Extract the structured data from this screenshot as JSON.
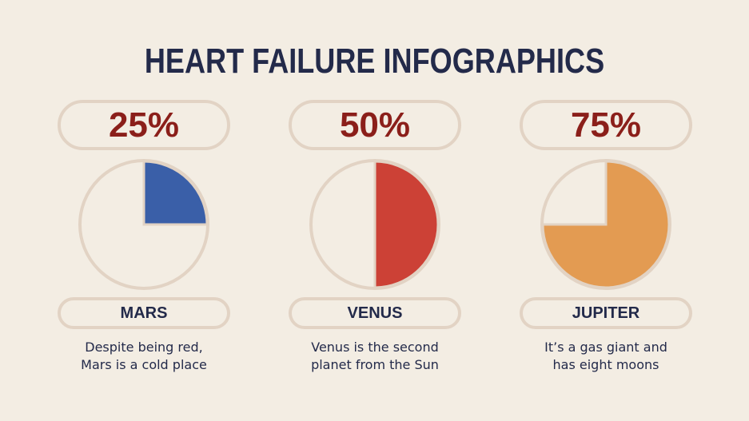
{
  "title": "HEART FAILURE INFOGRAPHICS",
  "chart_data": [
    {
      "type": "pie",
      "label": "25%",
      "value": 25,
      "color": "#3a5fa8",
      "name": "MARS",
      "description": [
        "Despite being red,",
        "Mars is a cold place"
      ]
    },
    {
      "type": "pie",
      "label": "50%",
      "value": 50,
      "color": "#cc4136",
      "name": "VENUS",
      "description": [
        "Venus is the second",
        "planet from the Sun"
      ]
    },
    {
      "type": "pie",
      "label": "75%",
      "value": 75,
      "color": "#e39b52",
      "name": "JUPITER",
      "description": [
        "It’s a gas giant and",
        "has eight moons"
      ]
    }
  ],
  "colors": {
    "background": "#f3ede3",
    "ring": "#e2d3c4",
    "title": "#232a4a",
    "percent": "#8b1f1a"
  }
}
